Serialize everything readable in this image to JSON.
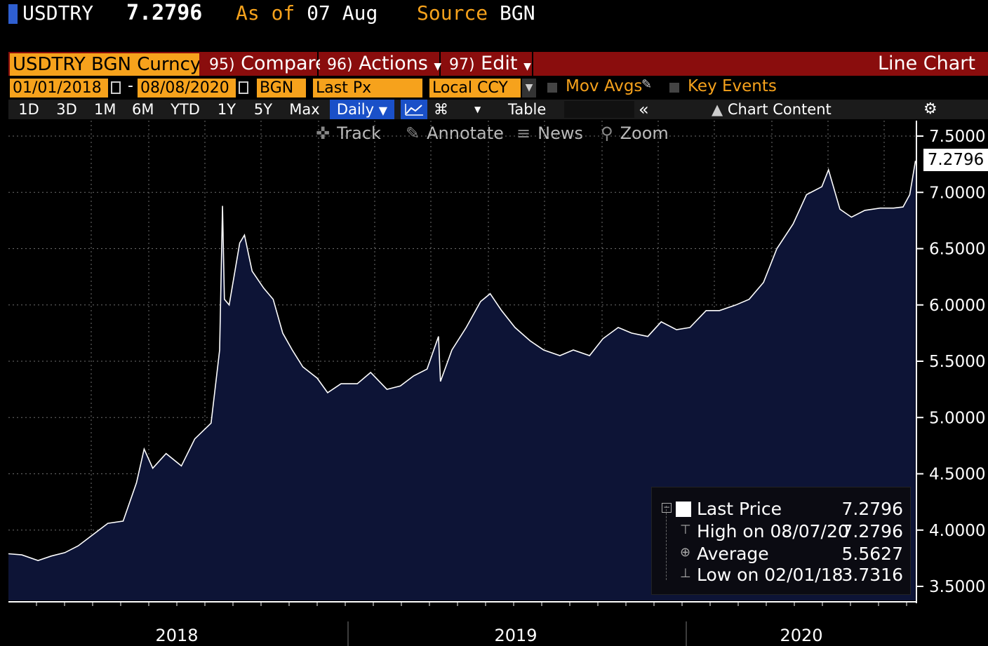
{
  "header": {
    "ticker": "USDTRY",
    "last_value": "7.2796",
    "as_of_label": "As of",
    "as_of_date": "07 Aug",
    "source_label": "Source",
    "source_value": "BGN"
  },
  "function_bar": {
    "security": "USDTRY BGN Curncy",
    "compare_num": "95)",
    "compare_label": "Compare",
    "actions_num": "96)",
    "actions_label": "Actions",
    "edit_num": "97)",
    "edit_label": "Edit",
    "view_label": "Line Chart"
  },
  "params": {
    "start_date": "01/01/2018",
    "end_date": "08/08/2020",
    "source": "BGN",
    "field": "Last Px",
    "currency": "Local CCY",
    "mov_avgs": "Mov Avgs",
    "key_events": "Key Events"
  },
  "range_buttons": [
    "1D",
    "3D",
    "1M",
    "6M",
    "YTD",
    "1Y",
    "5Y",
    "Max"
  ],
  "periodicity": "Daily",
  "table_label": "Table",
  "chart_content_label": "Chart Content",
  "tools": {
    "track": "Track",
    "annotate": "Annotate",
    "news": "News",
    "zoom": "Zoom"
  },
  "legend": {
    "last_price_label": "Last Price",
    "last_price_value": "7.2796",
    "high_label": "High on 08/07/20",
    "high_value": "7.2796",
    "average_label": "Average",
    "average_value": "5.5627",
    "low_label": "Low on 02/01/18",
    "low_value": "3.7316"
  },
  "colors": {
    "accent_orange": "#f6a21c",
    "function_bar_red": "#8a0d0d",
    "area_fill": "#0d1436",
    "line": "#ffffff",
    "selected_blue": "#1a50c8"
  },
  "chart_data": {
    "type": "area",
    "ylim": [
      3.5,
      7.5
    ],
    "yticks": [
      "7.5000",
      "7.0000",
      "6.5000",
      "6.0000",
      "5.5000",
      "5.0000",
      "4.5000",
      "4.0000",
      "3.5000"
    ],
    "xticks": [
      "2018",
      "2019",
      "2020"
    ],
    "last_price_tag": "7.2796",
    "series": [
      {
        "name": "Last Price",
        "points": [
          [
            "2018-01-01",
            3.79
          ],
          [
            "2018-01-15",
            3.78
          ],
          [
            "2018-02-01",
            3.73
          ],
          [
            "2018-02-15",
            3.77
          ],
          [
            "2018-03-01",
            3.8
          ],
          [
            "2018-03-15",
            3.86
          ],
          [
            "2018-04-01",
            3.97
          ],
          [
            "2018-04-15",
            4.06
          ],
          [
            "2018-05-01",
            4.08
          ],
          [
            "2018-05-15",
            4.42
          ],
          [
            "2018-05-23",
            4.72
          ],
          [
            "2018-06-01",
            4.55
          ],
          [
            "2018-06-15",
            4.68
          ],
          [
            "2018-07-01",
            4.57
          ],
          [
            "2018-07-15",
            4.81
          ],
          [
            "2018-08-01",
            4.95
          ],
          [
            "2018-08-10",
            5.6
          ],
          [
            "2018-08-13",
            6.88
          ],
          [
            "2018-08-15",
            6.05
          ],
          [
            "2018-08-20",
            6.0
          ],
          [
            "2018-08-31",
            6.55
          ],
          [
            "2018-09-05",
            6.62
          ],
          [
            "2018-09-13",
            6.3
          ],
          [
            "2018-09-25",
            6.15
          ],
          [
            "2018-10-05",
            6.05
          ],
          [
            "2018-10-15",
            5.75
          ],
          [
            "2018-10-25",
            5.6
          ],
          [
            "2018-11-05",
            5.45
          ],
          [
            "2018-11-20",
            5.35
          ],
          [
            "2018-12-01",
            5.22
          ],
          [
            "2018-12-15",
            5.3
          ],
          [
            "2019-01-01",
            5.3
          ],
          [
            "2019-01-15",
            5.4
          ],
          [
            "2019-02-01",
            5.25
          ],
          [
            "2019-02-15",
            5.28
          ],
          [
            "2019-03-01",
            5.37
          ],
          [
            "2019-03-15",
            5.43
          ],
          [
            "2019-03-27",
            5.72
          ],
          [
            "2019-03-29",
            5.32
          ],
          [
            "2019-04-10",
            5.6
          ],
          [
            "2019-04-25",
            5.8
          ],
          [
            "2019-05-10",
            6.03
          ],
          [
            "2019-05-20",
            6.1
          ],
          [
            "2019-06-01",
            5.95
          ],
          [
            "2019-06-15",
            5.8
          ],
          [
            "2019-07-01",
            5.68
          ],
          [
            "2019-07-15",
            5.6
          ],
          [
            "2019-08-01",
            5.55
          ],
          [
            "2019-08-15",
            5.6
          ],
          [
            "2019-09-01",
            5.55
          ],
          [
            "2019-09-15",
            5.7
          ],
          [
            "2019-10-01",
            5.8
          ],
          [
            "2019-10-15",
            5.75
          ],
          [
            "2019-11-01",
            5.72
          ],
          [
            "2019-11-15",
            5.85
          ],
          [
            "2019-12-01",
            5.78
          ],
          [
            "2019-12-15",
            5.8
          ],
          [
            "2020-01-01",
            5.95
          ],
          [
            "2020-01-15",
            5.95
          ],
          [
            "2020-02-01",
            6.0
          ],
          [
            "2020-02-15",
            6.05
          ],
          [
            "2020-03-01",
            6.2
          ],
          [
            "2020-03-15",
            6.5
          ],
          [
            "2020-04-01",
            6.72
          ],
          [
            "2020-04-15",
            6.98
          ],
          [
            "2020-05-01",
            7.05
          ],
          [
            "2020-05-08",
            7.2
          ],
          [
            "2020-05-20",
            6.85
          ],
          [
            "2020-06-01",
            6.78
          ],
          [
            "2020-06-15",
            6.84
          ],
          [
            "2020-07-01",
            6.86
          ],
          [
            "2020-07-15",
            6.86
          ],
          [
            "2020-07-25",
            6.87
          ],
          [
            "2020-08-01",
            6.98
          ],
          [
            "2020-08-07",
            7.28
          ]
        ]
      }
    ]
  }
}
